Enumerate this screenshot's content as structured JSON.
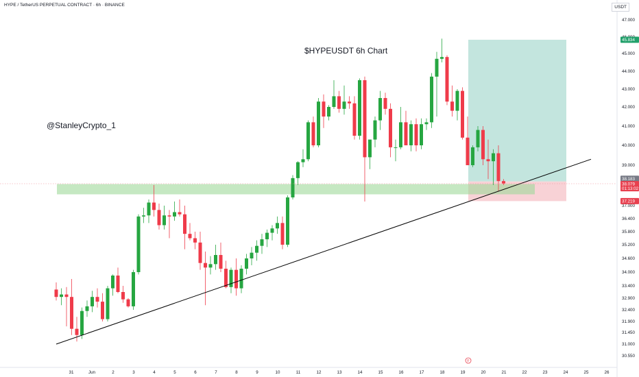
{
  "header": {
    "symbol_line": "HYPE / TetherUS PERPETUAL CONTRACT · 6h · BINANCE",
    "currency": "USDT"
  },
  "annotations": {
    "chart_title": "$HYPEUSDT 6h Chart",
    "author": "@StanleyCrypto_1"
  },
  "colors": {
    "up": "#26a641",
    "down": "#ef3b4a",
    "profit_zone": "#b8e0d8",
    "loss_zone": "#f7cdd2",
    "support_zone": "#9fd89a",
    "trendline": "#000000",
    "target_tag": "#22a06b",
    "stop_tag": "#e8404f",
    "entry_tag": "#787b86"
  },
  "chart_data": {
    "type": "candlestick",
    "title": "$HYPEUSDT 6h Chart",
    "ylim": [
      30.3,
      47.6
    ],
    "y_ticks": [
      "47.000",
      "46.000",
      "45.000",
      "44.000",
      "43.000",
      "42.000",
      "41.000",
      "40.000",
      "39.000",
      "38.000",
      "37.000",
      "36.400",
      "35.800",
      "35.200",
      "34.600",
      "34.000",
      "33.400",
      "32.900",
      "32.400",
      "31.900",
      "31.450",
      "31.000",
      "30.550"
    ],
    "x_ticks": [
      "31",
      "Jun",
      "2",
      "3",
      "4",
      "5",
      "6",
      "7",
      "8",
      "9",
      "10",
      "11",
      "12",
      "13",
      "14",
      "15",
      "16",
      "17",
      "18",
      "19",
      "20",
      "21",
      "22",
      "23",
      "24",
      "25",
      "26"
    ],
    "candles": [
      [
        33.25,
        33.55,
        32.8,
        32.95
      ],
      [
        32.95,
        33.3,
        32.6,
        33.05
      ],
      [
        33.05,
        33.35,
        31.7,
        32.95
      ],
      [
        32.95,
        33.7,
        31.35,
        31.6
      ],
      [
        31.6,
        32.1,
        31.1,
        31.35
      ],
      [
        31.35,
        32.5,
        31.2,
        32.35
      ],
      [
        32.35,
        32.8,
        32.1,
        32.55
      ],
      [
        32.55,
        33.2,
        32.3,
        32.95
      ],
      [
        32.95,
        33.3,
        32.5,
        32.75
      ],
      [
        32.75,
        33.1,
        31.9,
        32.0
      ],
      [
        32.0,
        33.4,
        31.9,
        33.3
      ],
      [
        33.3,
        33.9,
        33.0,
        33.85
      ],
      [
        33.85,
        34.2,
        33.1,
        33.15
      ],
      [
        33.15,
        33.4,
        32.7,
        32.85
      ],
      [
        32.85,
        32.9,
        32.5,
        32.55
      ],
      [
        32.55,
        34.1,
        32.4,
        34.0
      ],
      [
        34.0,
        36.6,
        33.9,
        36.5
      ],
      [
        36.5,
        36.9,
        36.2,
        36.55
      ],
      [
        36.55,
        37.3,
        36.2,
        37.15
      ],
      [
        37.15,
        38.0,
        36.5,
        36.8
      ],
      [
        36.8,
        37.1,
        35.9,
        36.1
      ],
      [
        36.1,
        37.0,
        35.9,
        36.55
      ],
      [
        36.55,
        36.8,
        35.5,
        36.5
      ],
      [
        36.5,
        37.2,
        36.3,
        36.7
      ],
      [
        36.7,
        37.3,
        36.5,
        36.6
      ],
      [
        36.6,
        37.0,
        35.0,
        35.7
      ],
      [
        35.7,
        36.2,
        35.4,
        35.5
      ],
      [
        35.5,
        35.8,
        35.0,
        35.3
      ],
      [
        35.3,
        35.8,
        34.1,
        34.4
      ],
      [
        34.4,
        34.9,
        32.6,
        34.2
      ],
      [
        34.2,
        34.7,
        33.9,
        34.35
      ],
      [
        34.35,
        35.2,
        34.1,
        34.75
      ],
      [
        34.75,
        35.3,
        34.0,
        34.15
      ],
      [
        34.15,
        34.5,
        33.3,
        33.35
      ],
      [
        33.35,
        34.2,
        33.1,
        34.1
      ],
      [
        34.1,
        34.6,
        33.0,
        33.3
      ],
      [
        33.3,
        34.3,
        33.1,
        34.15
      ],
      [
        34.15,
        34.8,
        33.9,
        34.6
      ],
      [
        34.6,
        35.1,
        34.3,
        34.85
      ],
      [
        34.85,
        35.4,
        34.5,
        35.15
      ],
      [
        35.15,
        35.7,
        34.8,
        35.45
      ],
      [
        35.45,
        35.9,
        35.1,
        35.75
      ],
      [
        35.75,
        36.1,
        35.4,
        35.95
      ],
      [
        35.95,
        36.5,
        35.7,
        36.2
      ],
      [
        36.2,
        36.5,
        35.0,
        35.2
      ],
      [
        35.2,
        37.5,
        35.1,
        37.4
      ],
      [
        37.4,
        38.5,
        37.3,
        38.35
      ],
      [
        38.35,
        39.2,
        38.0,
        39.15
      ],
      [
        39.15,
        39.8,
        38.9,
        39.3
      ],
      [
        39.3,
        41.3,
        39.2,
        41.2
      ],
      [
        41.2,
        41.5,
        39.9,
        40.0
      ],
      [
        40.0,
        42.5,
        39.9,
        42.3
      ],
      [
        42.3,
        42.7,
        40.9,
        41.5
      ],
      [
        41.5,
        42.1,
        41.3,
        42.0
      ],
      [
        42.0,
        43.5,
        41.9,
        42.6
      ],
      [
        42.6,
        42.9,
        41.7,
        41.9
      ],
      [
        41.9,
        43.2,
        41.6,
        42.3
      ],
      [
        42.3,
        42.6,
        41.9,
        42.2
      ],
      [
        42.2,
        42.6,
        40.3,
        40.5
      ],
      [
        40.5,
        43.6,
        40.3,
        43.5
      ],
      [
        43.5,
        43.7,
        37.2,
        39.4
      ],
      [
        39.4,
        40.2,
        38.8,
        40.3
      ],
      [
        40.3,
        41.5,
        39.9,
        41.3
      ],
      [
        41.3,
        42.9,
        40.8,
        42.5
      ],
      [
        42.5,
        42.8,
        41.6,
        41.9
      ],
      [
        41.9,
        42.2,
        39.4,
        39.9
      ],
      [
        39.9,
        40.3,
        39.2,
        39.9
      ],
      [
        39.9,
        42.0,
        39.8,
        41.2
      ],
      [
        41.2,
        41.8,
        40.0,
        40.0
      ],
      [
        40.0,
        41.3,
        39.7,
        41.1
      ],
      [
        41.1,
        41.4,
        39.7,
        40.0
      ],
      [
        40.0,
        41.4,
        39.8,
        41.1
      ],
      [
        41.1,
        41.4,
        40.8,
        41.2
      ],
      [
        41.2,
        43.9,
        40.9,
        43.7
      ],
      [
        43.7,
        45.1,
        41.5,
        44.7
      ],
      [
        44.7,
        45.9,
        44.5,
        44.8
      ],
      [
        44.8,
        44.9,
        42.1,
        42.3
      ],
      [
        42.3,
        43.2,
        41.5,
        41.8
      ],
      [
        41.8,
        43.0,
        41.3,
        42.9
      ],
      [
        42.9,
        43.1,
        40.3,
        40.4
      ],
      [
        40.4,
        41.5,
        39.0,
        39.0
      ],
      [
        39.0,
        40.0,
        38.9,
        39.9
      ],
      [
        39.9,
        41.0,
        39.7,
        40.8
      ],
      [
        40.8,
        41.0,
        39.0,
        39.3
      ],
      [
        39.3,
        40.3,
        38.3,
        39.2
      ],
      [
        39.2,
        39.8,
        38.0,
        39.6
      ],
      [
        39.6,
        40.0,
        37.7,
        38.2
      ],
      [
        38.2,
        38.3,
        38.0,
        38.08
      ]
    ],
    "trendline": {
      "from": [
        "31",
        31.0
      ],
      "to": [
        "25",
        39.3
      ]
    },
    "support_zone": {
      "top": 38.05,
      "bottom": 37.55
    },
    "position_tool": {
      "entry": 38.18,
      "target": 45.834,
      "stop": 37.219
    },
    "price_tags": {
      "target": "45.834",
      "high_gray": "38.183",
      "current": "38.079",
      "countdown": "01:13:02",
      "stop": "37.219"
    }
  }
}
